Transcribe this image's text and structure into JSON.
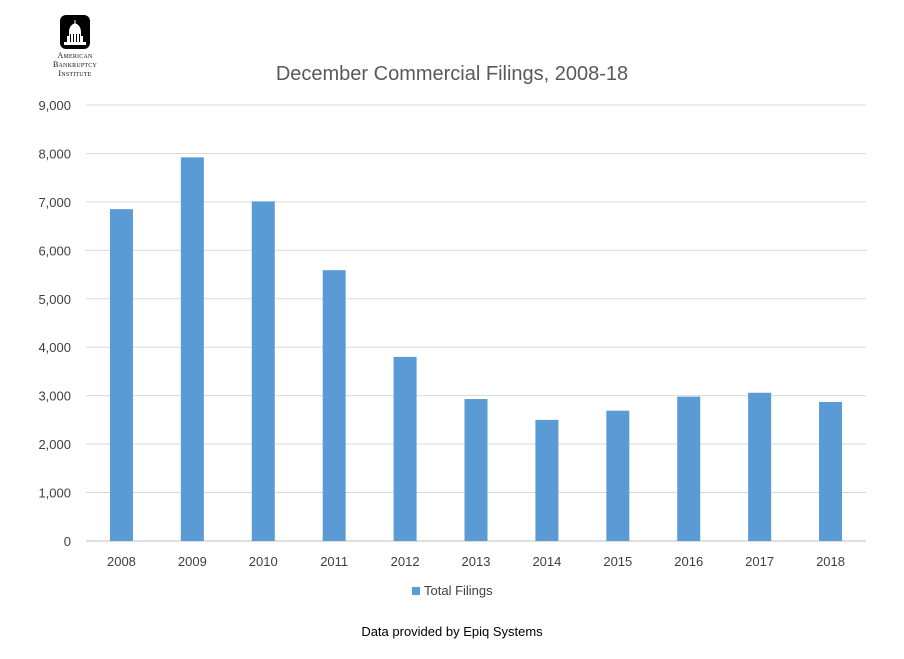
{
  "logo": {
    "lines": [
      "American",
      "Bankruptcy",
      "Institute"
    ],
    "icon": "capitol-dome-icon"
  },
  "chart_data": {
    "type": "bar",
    "title": "December Commercial Filings, 2008-18",
    "categories": [
      "2008",
      "2009",
      "2010",
      "2011",
      "2012",
      "2013",
      "2014",
      "2015",
      "2016",
      "2017",
      "2018"
    ],
    "series": [
      {
        "name": "Total Filings",
        "values": [
          6850,
          7920,
          7010,
          5590,
          3800,
          2930,
          2500,
          2690,
          2980,
          3060,
          2870
        ],
        "color": "#5B9BD5"
      }
    ],
    "ylim": [
      0,
      9000
    ],
    "yticks": [
      "0",
      "1,000",
      "2,000",
      "3,000",
      "4,000",
      "5,000",
      "6,000",
      "7,000",
      "8,000",
      "9,000"
    ],
    "grid": true,
    "legend": "bottom"
  },
  "footer": {
    "note": "Data provided by Epiq Systems"
  }
}
